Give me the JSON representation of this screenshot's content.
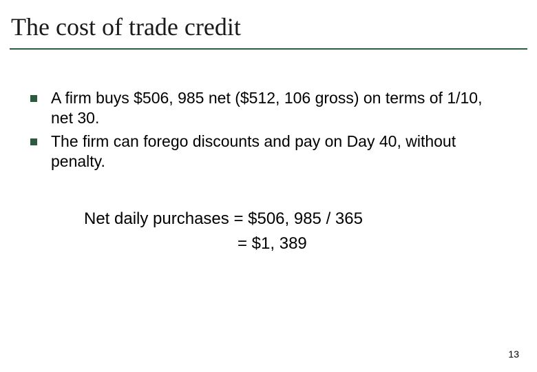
{
  "title": "The cost of trade credit",
  "title_underline_color": "#2c5a3f",
  "bullet_color": "#2c5a3f",
  "bullets": [
    "A firm buys $506, 985 net ($512, 106 gross) on terms of 1/10, net 30.",
    "The firm can forego discounts and pay on Day 40, without penalty."
  ],
  "calculation": {
    "line1": "Net daily purchases = $506, 985 / 365",
    "line2": "= $1, 389"
  },
  "page_number": "13",
  "typography": {
    "title_font": "Times New Roman",
    "title_fontsize": 36,
    "body_font": "Arial",
    "body_fontsize": 23,
    "calc_fontsize": 24,
    "pagenum_fontsize": 14
  },
  "colors": {
    "background": "#ffffff",
    "text": "#000000"
  }
}
